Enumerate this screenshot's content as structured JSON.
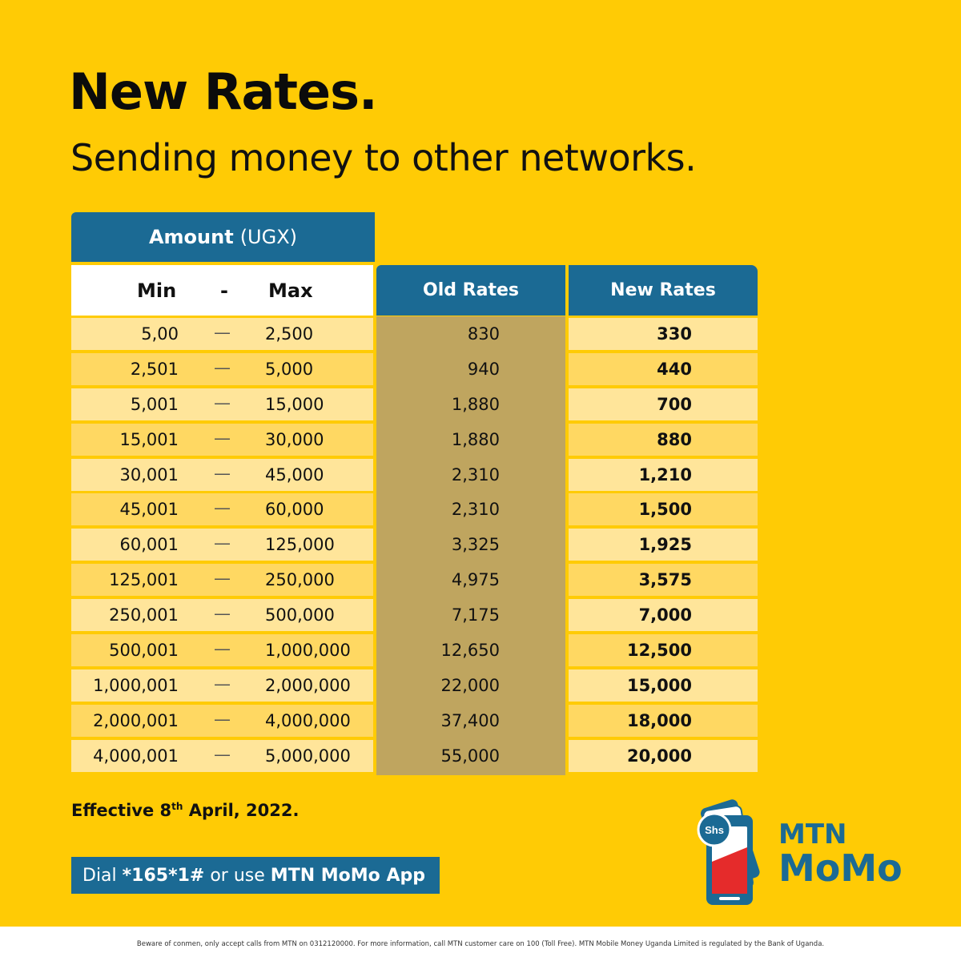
{
  "header": {
    "title": "New Rates.",
    "subtitle": "Sending money to other networks."
  },
  "table": {
    "amount_label": "Amount",
    "amount_unit": "(UGX)",
    "min_label": "Min",
    "dash_label": "-",
    "max_label": "Max",
    "old_label": "Old Rates",
    "new_label": "New Rates",
    "separator": "—",
    "rows": [
      {
        "min": "5,00",
        "max": "2,500",
        "old": "830",
        "new": "330"
      },
      {
        "min": "2,501",
        "max": "5,000",
        "old": "940",
        "new": "440"
      },
      {
        "min": "5,001",
        "max": "15,000",
        "old": "1,880",
        "new": "700"
      },
      {
        "min": "15,001",
        "max": "30,000",
        "old": "1,880",
        "new": "880"
      },
      {
        "min": "30,001",
        "max": "45,000",
        "old": "2,310",
        "new": "1,210"
      },
      {
        "min": "45,001",
        "max": "60,000",
        "old": "2,310",
        "new": "1,500"
      },
      {
        "min": "60,001",
        "max": "125,000",
        "old": "3,325",
        "new": "1,925"
      },
      {
        "min": "125,001",
        "max": "250,000",
        "old": "4,975",
        "new": "3,575"
      },
      {
        "min": "250,001",
        "max": "500,000",
        "old": "7,175",
        "new": "7,000"
      },
      {
        "min": "500,001",
        "max": "1,000,000",
        "old": "12,650",
        "new": "12,500"
      },
      {
        "min": "1,000,001",
        "max": "2,000,000",
        "old": "22,000",
        "new": "15,000"
      },
      {
        "min": "2,000,001",
        "max": "4,000,000",
        "old": "37,400",
        "new": "18,000"
      },
      {
        "min": "4,000,001",
        "max": "5,000,000",
        "old": "55,000",
        "new": "20,000"
      }
    ]
  },
  "effective": {
    "prefix": "Effective 8",
    "sup": "th",
    "suffix": " April, 2022."
  },
  "dial": {
    "prefix": "Dial ",
    "code": "*165*1#",
    "middle": " or use ",
    "app": "MTN MoMo App"
  },
  "logo": {
    "line1": "MTN",
    "line2": "MoMo",
    "badge": "Shs",
    "icon": "phone-with-money-icon"
  },
  "colors": {
    "background": "#FFCB05",
    "accent_blue": "#1B6A94",
    "old_rate_cell": "#BFA55F",
    "row_light": "#FFE59A",
    "row_dark": "#FFD862",
    "red": "#E52B2B"
  },
  "footer": {
    "text": "Beware of conmen, only accept calls from MTN on 0312120000. For more information, call MTN customer care on 100 (Toll Free). MTN Mobile Money Uganda Limited is regulated by the Bank of Uganda."
  }
}
